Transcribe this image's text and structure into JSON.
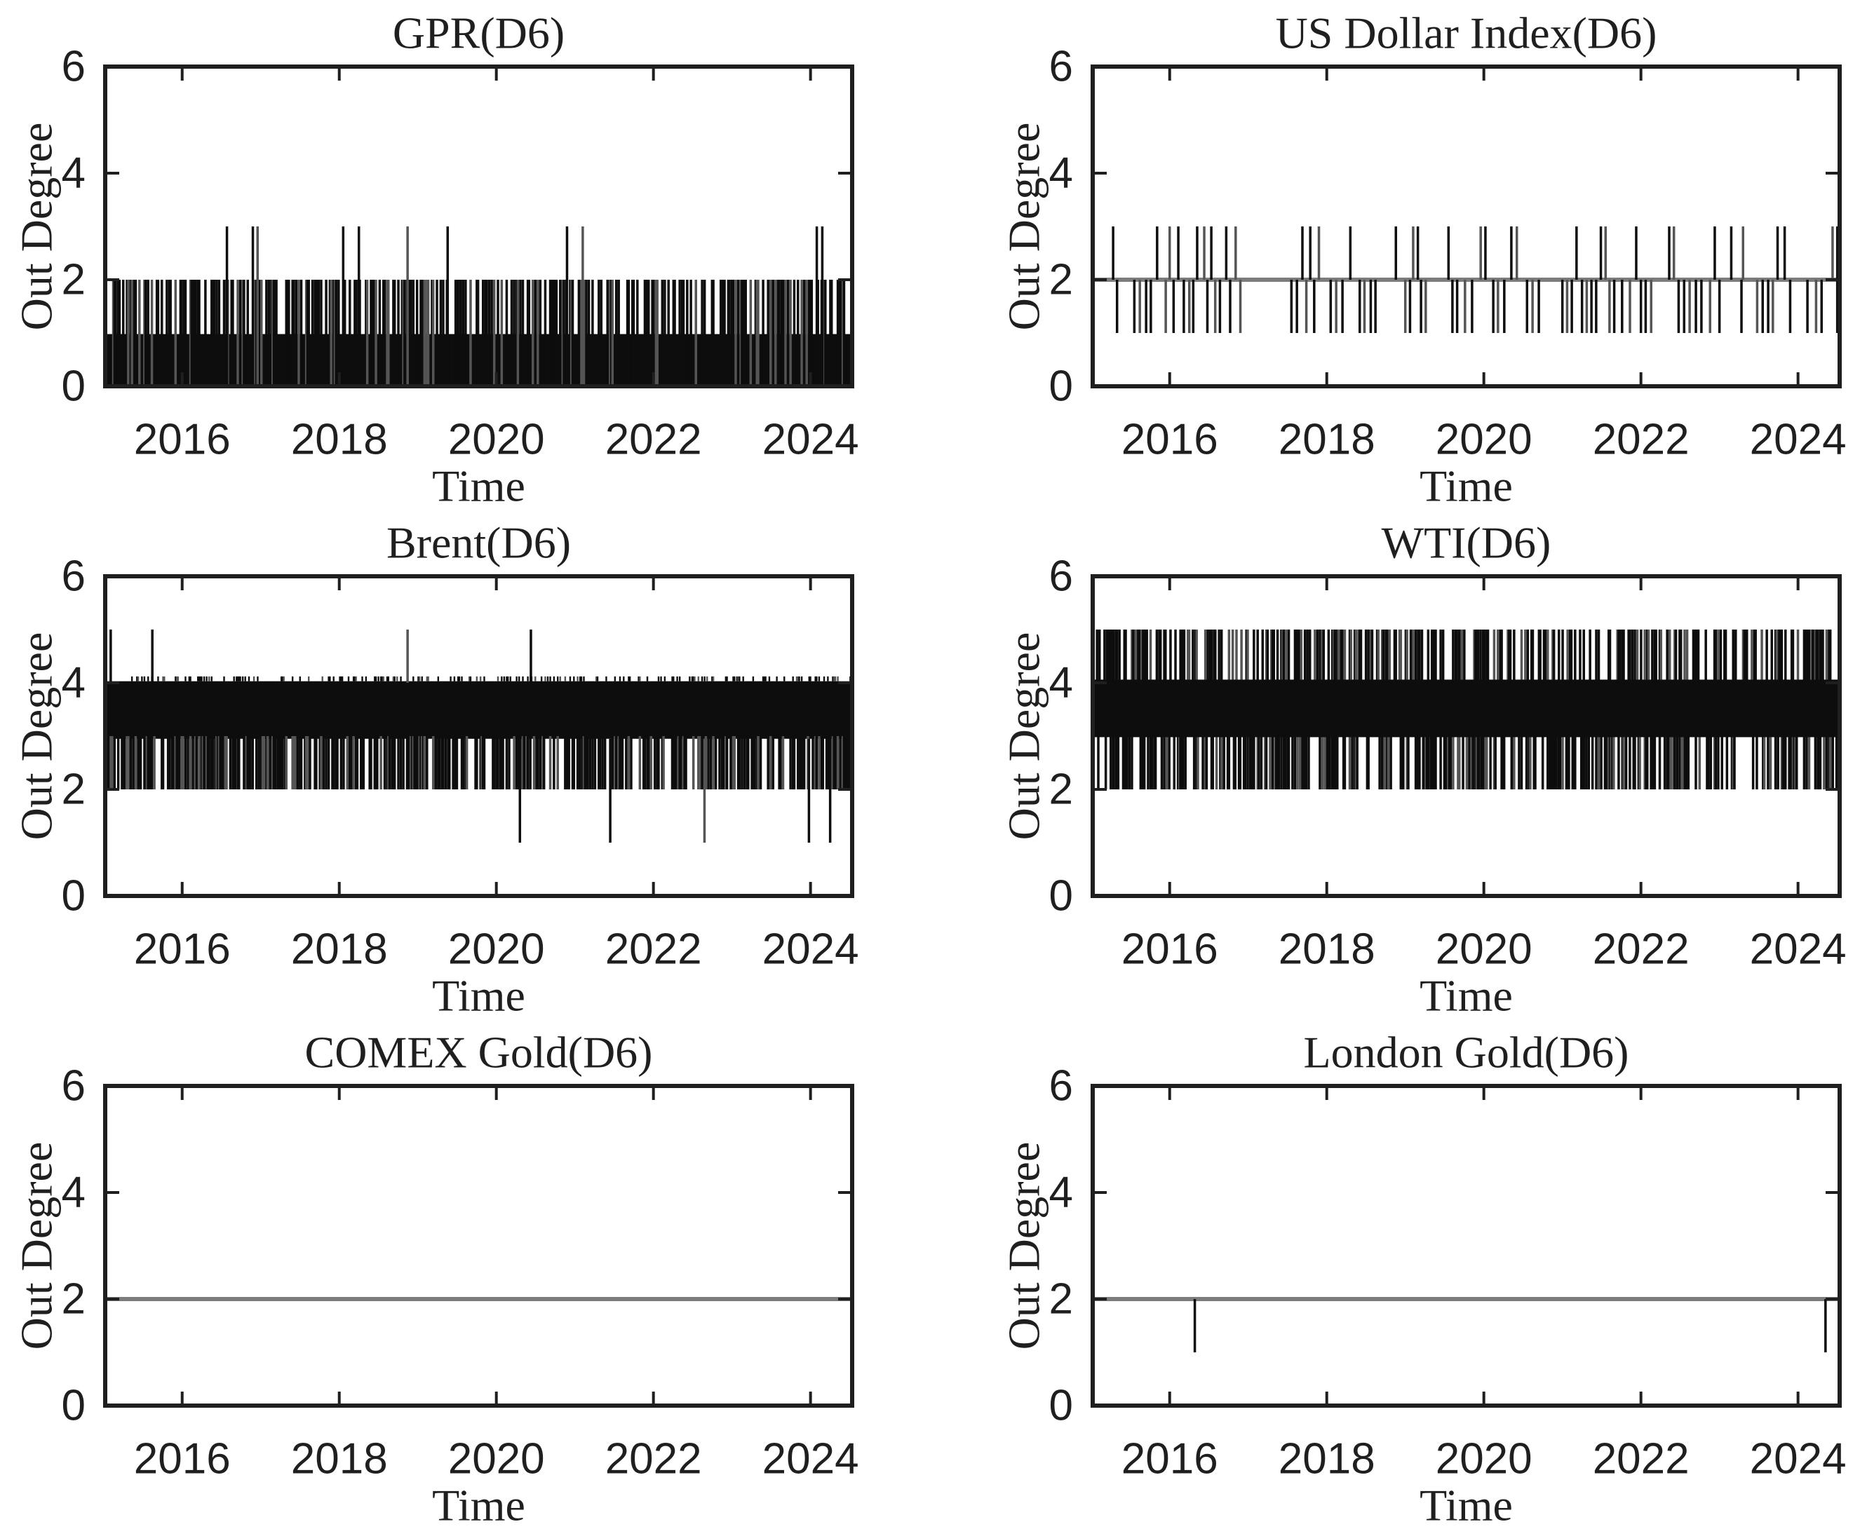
{
  "figure": {
    "kind": "matlab-style subplot grid, 3 rows x 2 columns",
    "background": "#ffffff",
    "colors": {
      "ink": "#0d0d0d",
      "stem_alt": "#555555",
      "axis": "#1f1f1f",
      "text": "#1f1f1f",
      "gray_line": "#7c7c7c"
    },
    "shared": {
      "xlabel": "Time",
      "ylabel": "Out Degree"
    }
  },
  "chart_data": [
    {
      "id": "gpr",
      "type": "line",
      "title": "GPR(D6)",
      "xlabel": "Time",
      "ylabel": "Out Degree",
      "xlim": [
        2015.02,
        2024.53
      ],
      "ylim": [
        0,
        6
      ],
      "xticks": [
        2016,
        2018,
        2020,
        2022,
        2024
      ],
      "yticks": [
        0,
        2,
        4,
        6
      ],
      "grid": false,
      "pattern": "daily integer series oscillating between 0 and 1 (solid black mass), frequent excursions to 2, rare spikes to 3",
      "solid_bands": [
        {
          "y0": 0,
          "y1": 0.98
        }
      ],
      "dense_stems": [
        {
          "y0": 0,
          "y1": 2,
          "slots": 600,
          "density": 0.42,
          "seed": 101
        }
      ],
      "stems": [
        {
          "y0": 0,
          "y1": 3,
          "x": [
            2016.57,
            2016.9,
            2016.96,
            2018.05,
            2018.25,
            2018.87,
            2019.38,
            2020.9,
            2021.1,
            2024.08,
            2024.15
          ]
        }
      ]
    },
    {
      "id": "usd-index",
      "type": "line",
      "title": "US Dollar Index(D6)",
      "xlabel": "Time",
      "ylabel": "Out Degree",
      "xlim": [
        2015.02,
        2024.53
      ],
      "ylim": [
        0,
        6
      ],
      "xticks": [
        2016,
        2018,
        2020,
        2022,
        2024
      ],
      "yticks": [
        0,
        2,
        4,
        6
      ],
      "grid": false,
      "pattern": "constant at 2 (gray line) with isolated one-day spikes up to 3 and down to 1",
      "baseline": {
        "y": 2
      },
      "stems": [
        {
          "y0": 2,
          "y1": 3,
          "x": [
            2015.28,
            2015.84,
            2016.0,
            2016.11,
            2016.35,
            2016.44,
            2016.53,
            2016.72,
            2016.84,
            2017.69,
            2017.79,
            2017.9,
            2018.3,
            2018.88,
            2019.1,
            2019.16,
            2019.55,
            2019.96,
            2020.02,
            2020.35,
            2020.42,
            2021.18,
            2021.49,
            2021.55,
            2021.94,
            2022.36,
            2022.42,
            2022.94,
            2023.15,
            2023.3,
            2023.74,
            2023.83,
            2024.44,
            2024.5
          ]
        },
        {
          "y0": 1,
          "y1": 2,
          "x": [
            2015.33,
            2015.55,
            2015.62,
            2015.7,
            2015.76,
            2015.95,
            2016.05,
            2016.18,
            2016.25,
            2016.3,
            2016.48,
            2016.58,
            2016.64,
            2016.77,
            2016.9,
            2017.55,
            2017.62,
            2017.74,
            2017.84,
            2018.05,
            2018.12,
            2018.2,
            2018.42,
            2018.48,
            2018.56,
            2018.62,
            2019.0,
            2019.06,
            2019.2,
            2019.26,
            2019.6,
            2019.66,
            2019.76,
            2019.85,
            2020.12,
            2020.18,
            2020.26,
            2020.55,
            2020.62,
            2020.7,
            2021.0,
            2021.06,
            2021.12,
            2021.25,
            2021.31,
            2021.37,
            2021.43,
            2021.6,
            2021.66,
            2021.76,
            2021.86,
            2022.0,
            2022.06,
            2022.13,
            2022.48,
            2022.55,
            2022.62,
            2022.7,
            2022.77,
            2022.88,
            2023.0,
            2023.28,
            2023.48,
            2023.55,
            2023.62,
            2023.68,
            2023.9,
            2024.12,
            2024.23,
            2024.3,
            2024.5
          ]
        }
      ]
    },
    {
      "id": "brent",
      "type": "line",
      "title": "Brent(D6)",
      "xlabel": "Time",
      "ylabel": "Out Degree",
      "xlim": [
        2015.02,
        2024.53
      ],
      "ylim": [
        0,
        6
      ],
      "xticks": [
        2016,
        2018,
        2020,
        2022,
        2024
      ],
      "yticks": [
        0,
        2,
        4,
        6
      ],
      "grid": false,
      "pattern": "oscillates between 3 and 4 (solid black band), frequent dips to 2, four spikes to 5, five dips to 1",
      "solid_bands": [
        {
          "y0": 2.95,
          "y1": 4.03
        }
      ],
      "dense_stems": [
        {
          "y0": 2.0,
          "y1": 3.0,
          "slots": 600,
          "density": 0.58,
          "seed": 202
        },
        {
          "y0": 4.03,
          "y1": 4.12,
          "slots": 600,
          "density": 0.32,
          "seed": 203,
          "thin": true
        }
      ],
      "stems": [
        {
          "y0": 4.0,
          "y1": 5.0,
          "x": [
            2015.09,
            2015.62,
            2018.87,
            2020.44
          ]
        },
        {
          "y0": 1.0,
          "y1": 2.95,
          "x": [
            2020.3,
            2021.45,
            2022.65,
            2023.98,
            2024.25
          ]
        }
      ]
    },
    {
      "id": "wti",
      "type": "line",
      "title": "WTI(D6)",
      "xlabel": "Time",
      "ylabel": "Out Degree",
      "xlim": [
        2015.02,
        2024.53
      ],
      "ylim": [
        0,
        6
      ],
      "xticks": [
        2016,
        2018,
        2020,
        2022,
        2024
      ],
      "yticks": [
        0,
        2,
        4,
        6
      ],
      "grid": false,
      "pattern": "oscillates between 3 and 4 (solid black band) with very frequent spikes to 5 and dips to 2 across the whole sample",
      "solid_bands": [
        {
          "y0": 2.98,
          "y1": 4.06
        }
      ],
      "dense_stems": [
        {
          "y0": 4.06,
          "y1": 5.0,
          "slots": 600,
          "density": 0.46,
          "seed": 301
        },
        {
          "y0": 2.0,
          "y1": 2.98,
          "slots": 600,
          "density": 0.46,
          "seed": 302
        }
      ],
      "stems": []
    },
    {
      "id": "comex-gold",
      "type": "line",
      "title": "COMEX Gold(D6)",
      "xlabel": "Time",
      "ylabel": "Out Degree",
      "xlim": [
        2015.02,
        2024.53
      ],
      "ylim": [
        0,
        6
      ],
      "xticks": [
        2016,
        2018,
        2020,
        2022,
        2024
      ],
      "yticks": [
        0,
        2,
        4,
        6
      ],
      "grid": false,
      "pattern": "constant at 2 for the entire sample (flat gray line, no excursions)",
      "baseline": {
        "y": 2
      },
      "stems": []
    },
    {
      "id": "london-gold",
      "type": "line",
      "title": "London Gold(D6)",
      "xlabel": "Time",
      "ylabel": "Out Degree",
      "xlim": [
        2015.02,
        2024.53
      ],
      "ylim": [
        0,
        6
      ],
      "xticks": [
        2016,
        2018,
        2020,
        2022,
        2024
      ],
      "yticks": [
        0,
        2,
        4,
        6
      ],
      "grid": false,
      "pattern": "constant at 2 (gray line) with two one-day dips to 1, in early 2016 and in 2024",
      "baseline": {
        "y": 2
      },
      "stems": [
        {
          "y0": 1,
          "y1": 2,
          "x": [
            2016.32,
            2024.35
          ]
        }
      ]
    }
  ]
}
